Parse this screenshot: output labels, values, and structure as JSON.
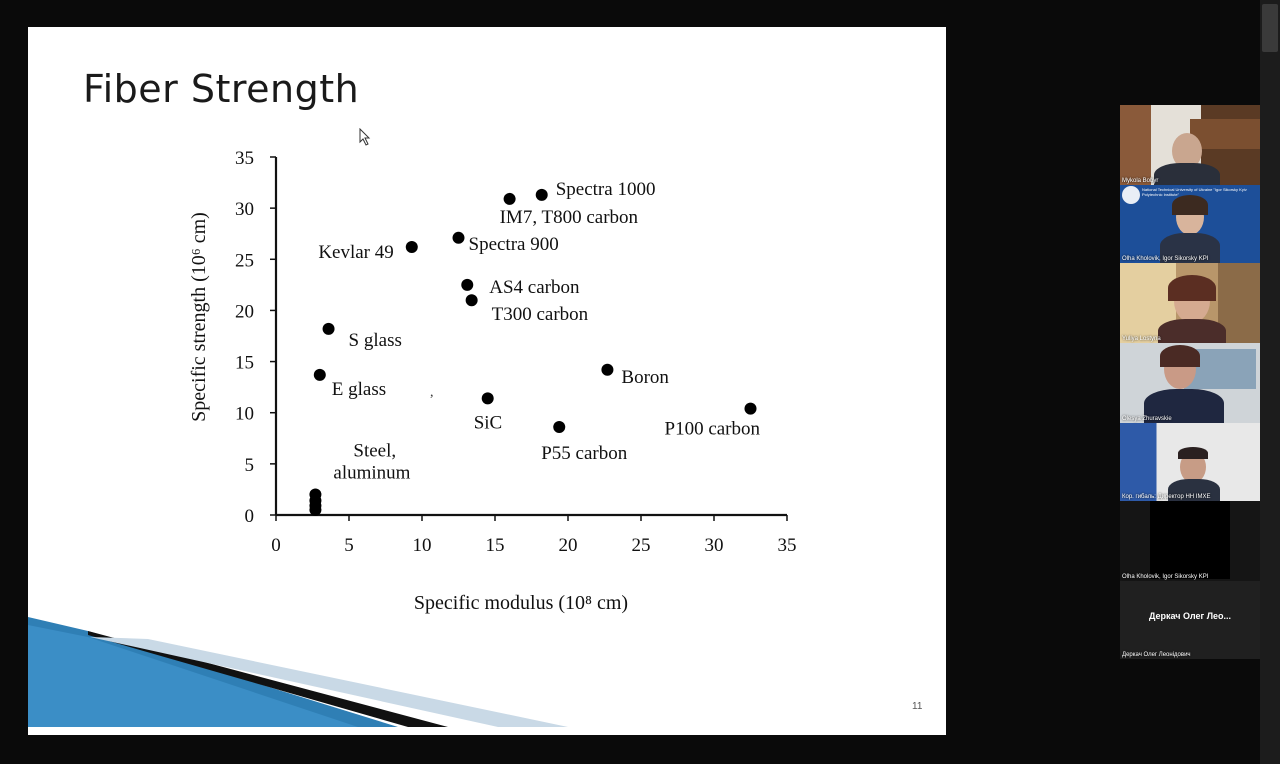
{
  "slide": {
    "title": "Fiber Strength",
    "slide_number": "11",
    "stray_mark": ","
  },
  "chart_data": {
    "type": "scatter",
    "xlabel": "Specific modulus (10⁸ cm)",
    "ylabel": "Specific strength (10⁶ cm)",
    "xlim": [
      0,
      35
    ],
    "ylim": [
      0,
      35
    ],
    "xticks": [
      0,
      5,
      10,
      15,
      20,
      25,
      30,
      35
    ],
    "yticks": [
      0,
      5,
      10,
      15,
      20,
      25,
      30,
      35
    ],
    "grid": false,
    "points": [
      {
        "label": "Spectra 1000",
        "x": 18.2,
        "y": 31.3
      },
      {
        "label": "IM7, T800 carbon",
        "x": 16.0,
        "y": 30.9
      },
      {
        "label": "Kevlar 49",
        "x": 9.3,
        "y": 26.2
      },
      {
        "label": "Spectra 900",
        "x": 12.5,
        "y": 27.1
      },
      {
        "label": "AS4 carbon",
        "x": 13.1,
        "y": 22.5
      },
      {
        "label": "T300 carbon",
        "x": 13.4,
        "y": 21.0
      },
      {
        "label": "S glass",
        "x": 3.6,
        "y": 18.2
      },
      {
        "label": "E glass",
        "x": 3.0,
        "y": 13.7
      },
      {
        "label": "Boron",
        "x": 22.7,
        "y": 14.2
      },
      {
        "label": "SiC",
        "x": 14.5,
        "y": 11.4
      },
      {
        "label": "P100 carbon",
        "x": 32.5,
        "y": 10.4
      },
      {
        "label": "P55 carbon",
        "x": 19.4,
        "y": 8.6
      },
      {
        "label": "Steel, aluminum",
        "x": 2.7,
        "y": 2.0
      },
      {
        "label": "",
        "x": 2.7,
        "y": 1.4
      },
      {
        "label": "",
        "x": 2.7,
        "y": 0.9
      },
      {
        "label": "",
        "x": 2.7,
        "y": 0.5
      }
    ]
  },
  "participants": [
    {
      "name": "Mykola Bobyr",
      "bg": "#6b4a33"
    },
    {
      "name": "Olha Kholovik, Igor Sikorsky KPI",
      "bg": "#1d4f99",
      "banner": "National Technical University of Ukraine \"Igor Sikorsky Kyiv Polytechnic Institute\""
    },
    {
      "name": "Yuliya Lostyna",
      "bg": "#b89566"
    },
    {
      "name": "Olesya Zhuravskie",
      "bg": "#cfd4d8"
    },
    {
      "name": "Кор. гибаль: Директор НН ІМХЕ",
      "bg": "#d9d9d9"
    },
    {
      "name": "Olha Kholovik, Igor Sikorsky KPI",
      "bg": "#000000"
    },
    {
      "name": "Деркач Олег Лео...",
      "bg": "#202020",
      "subname": "Деркач Олег Леонідович"
    }
  ]
}
